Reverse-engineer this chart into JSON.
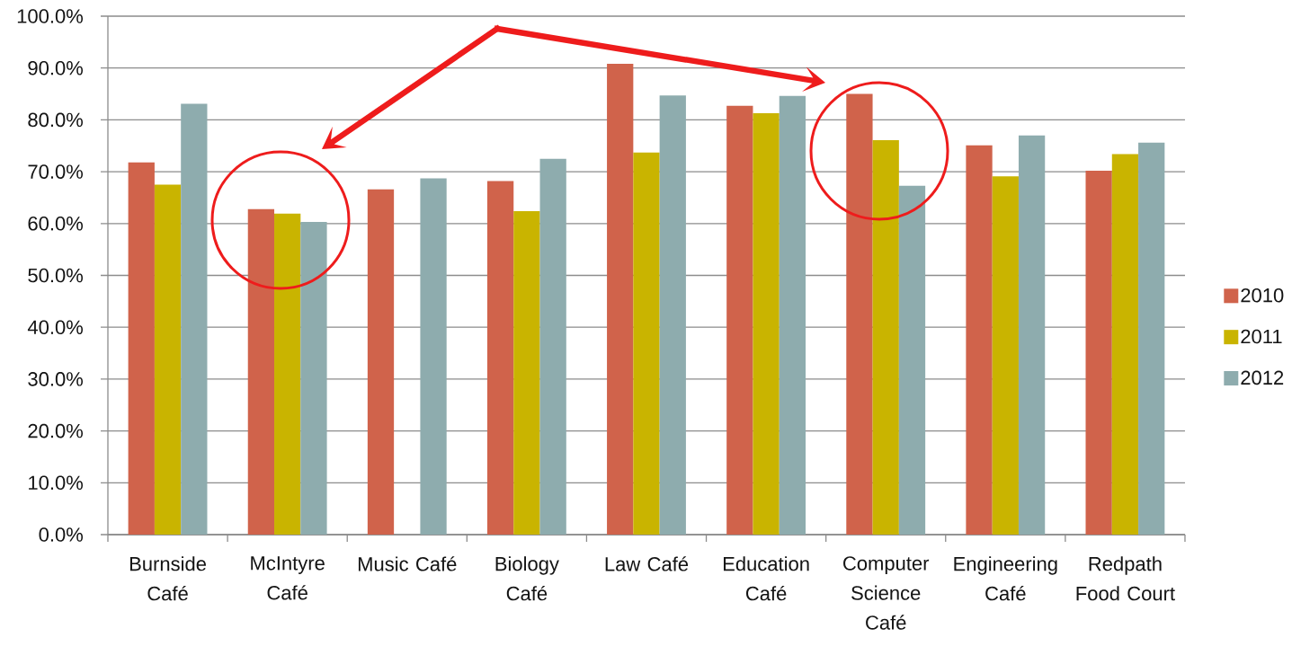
{
  "chart_data": {
    "type": "bar",
    "categories": [
      "Burnside Café",
      "McIntyre Café",
      "Music Café",
      "Biology Café",
      "Law Café",
      "Education Café",
      "Computer Science Café",
      "Engineering Café",
      "Redpath Food Court"
    ],
    "series": [
      {
        "name": "2010",
        "color": "#d0634b",
        "values": [
          71.8,
          62.8,
          66.6,
          68.2,
          90.8,
          82.7,
          85.0,
          75.1,
          70.2
        ]
      },
      {
        "name": "2011",
        "color": "#c9b400",
        "values": [
          67.5,
          61.9,
          null,
          62.4,
          73.7,
          81.3,
          76.1,
          69.1,
          73.4
        ]
      },
      {
        "name": "2012",
        "color": "#8eacae",
        "values": [
          83.1,
          60.3,
          68.7,
          72.5,
          84.7,
          84.6,
          67.3,
          77.0,
          75.6
        ]
      }
    ],
    "ylim": [
      0,
      100
    ],
    "yticks": [
      {
        "value": 0,
        "label": "0.0%"
      },
      {
        "value": 10,
        "label": "10.0%"
      },
      {
        "value": 20,
        "label": "20.0%"
      },
      {
        "value": 30,
        "label": "30.0%"
      },
      {
        "value": 40,
        "label": "40.0%"
      },
      {
        "value": 50,
        "label": "50.0%"
      },
      {
        "value": 60,
        "label": "60.0%"
      },
      {
        "value": 70,
        "label": "70.0%"
      },
      {
        "value": 80,
        "label": "80.0%"
      },
      {
        "value": 90,
        "label": "90.0%"
      },
      {
        "value": 100,
        "label": "100.0%"
      }
    ],
    "grid": "y",
    "legend": "right"
  }
}
